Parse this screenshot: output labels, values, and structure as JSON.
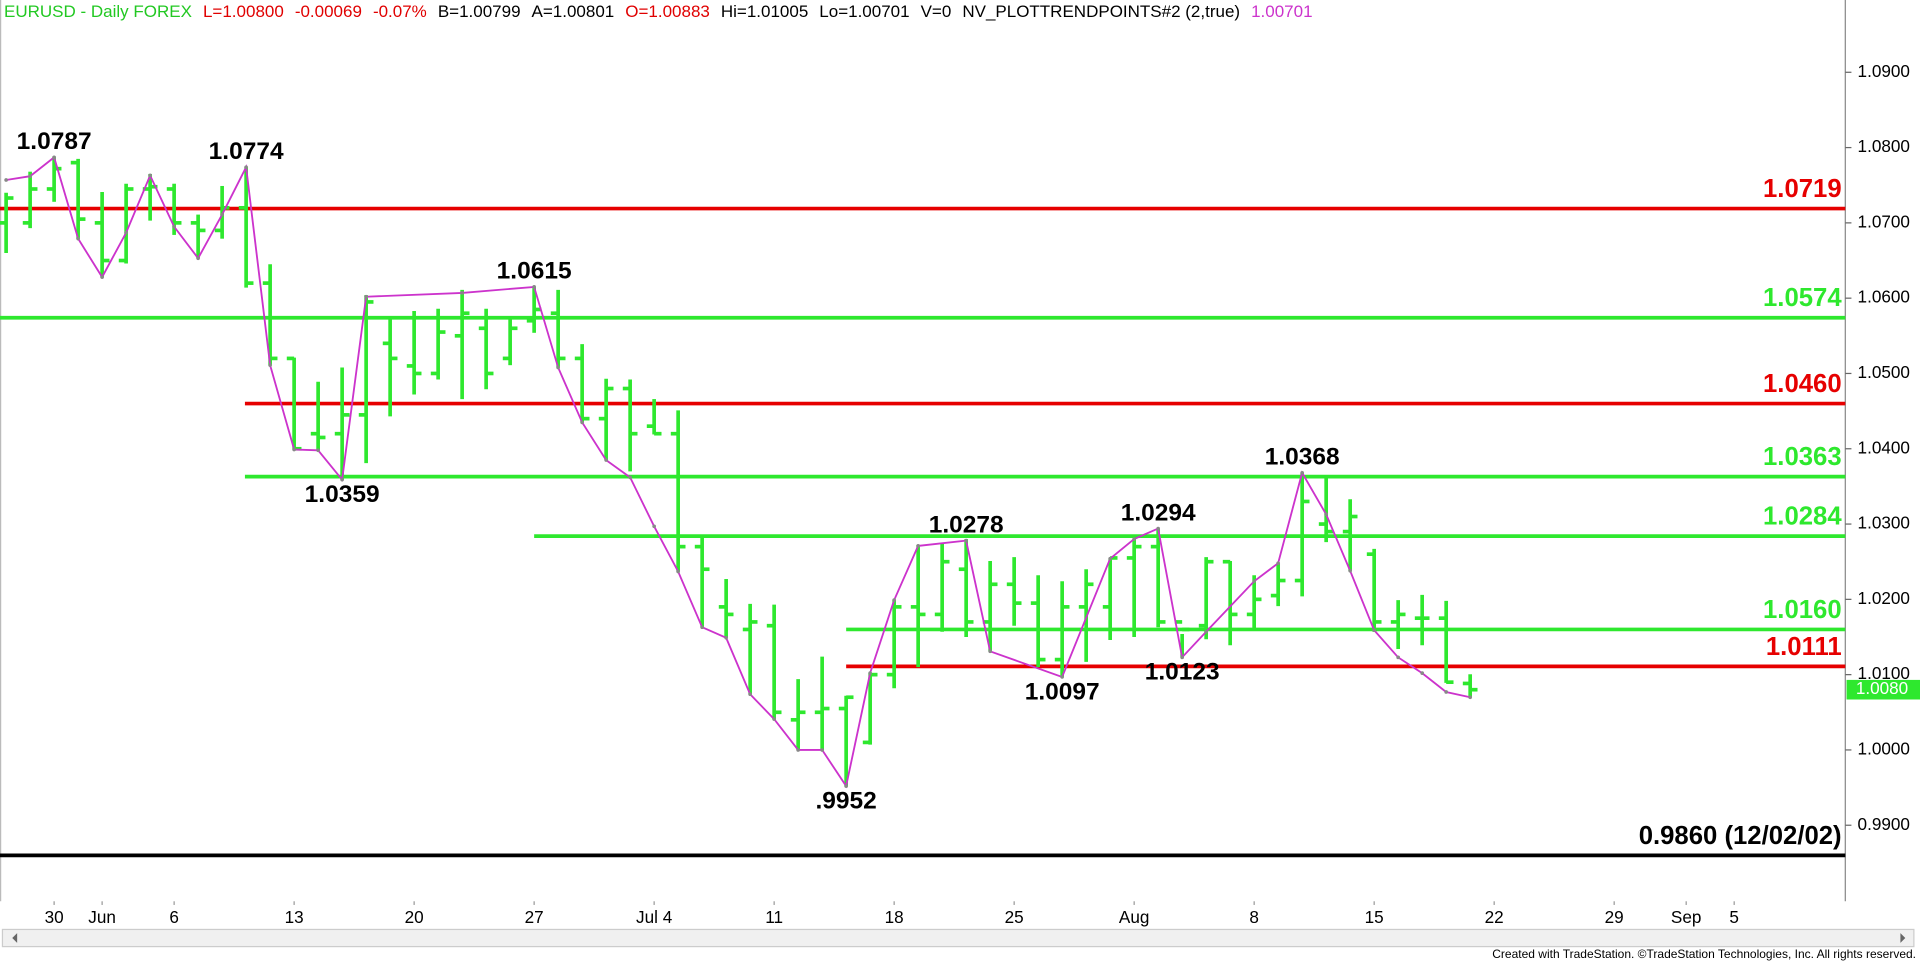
{
  "chart_data": {
    "type": "ohlc",
    "header_items": [
      {
        "text": "EURUSD - Daily  FOREX",
        "color": "#22c822"
      },
      {
        "text": "L=1.00800",
        "color": "#e00000"
      },
      {
        "text": "-0.00069",
        "color": "#e00000"
      },
      {
        "text": "-0.07%",
        "color": "#e00000"
      },
      {
        "text": "B=1.00799",
        "color": "#000000"
      },
      {
        "text": "A=1.00801",
        "color": "#000000"
      },
      {
        "text": "O=1.00883",
        "color": "#e00000"
      },
      {
        "text": "Hi=1.01005",
        "color": "#000000"
      },
      {
        "text": "Lo=1.00701",
        "color": "#000000"
      },
      {
        "text": "V=0",
        "color": "#000000"
      },
      {
        "text": "NV_PLOTTRENDPOINTS#2 (2,true)",
        "color": "#000000"
      },
      {
        "text": "1.00701",
        "color": "#cc33cc"
      }
    ],
    "xlim": [
      -0.255,
      76.63
    ],
    "ylim": [
      0.9799,
      1.0996
    ],
    "xticks": [
      {
        "value": 2,
        "label": "30"
      },
      {
        "value": 4,
        "label": "Jun"
      },
      {
        "value": 7,
        "label": "6"
      },
      {
        "value": 12,
        "label": "13"
      },
      {
        "value": 17,
        "label": "20"
      },
      {
        "value": 22,
        "label": "27"
      },
      {
        "value": 27,
        "label": "Jul 4"
      },
      {
        "value": 32,
        "label": "11"
      },
      {
        "value": 37,
        "label": "18"
      },
      {
        "value": 42,
        "label": "25"
      },
      {
        "value": 47,
        "label": "Aug"
      },
      {
        "value": 52,
        "label": "8"
      },
      {
        "value": 57,
        "label": "15"
      },
      {
        "value": 62,
        "label": "22"
      },
      {
        "value": 67,
        "label": "29"
      },
      {
        "value": 70,
        "label": "Sep"
      },
      {
        "value": 72,
        "label": "5"
      }
    ],
    "yticks": [
      {
        "value": 0.99,
        "label": "0.9900"
      },
      {
        "value": 1.0,
        "label": "1.0000"
      },
      {
        "value": 1.01,
        "label": "1.0100"
      },
      {
        "value": 1.02,
        "label": "1.0200"
      },
      {
        "value": 1.03,
        "label": "1.0300"
      },
      {
        "value": 1.04,
        "label": "1.0400"
      },
      {
        "value": 1.05,
        "label": "1.0500"
      },
      {
        "value": 1.06,
        "label": "1.0600"
      },
      {
        "value": 1.07,
        "label": "1.0700"
      },
      {
        "value": 1.08,
        "label": "1.0800"
      },
      {
        "value": 1.09,
        "label": "1.0900"
      }
    ],
    "ohlc": {
      "color": "#2ee82e",
      "open": [
        1.07,
        1.07,
        1.0745,
        1.078,
        1.07,
        1.065,
        1.0745,
        1.0745,
        1.07,
        1.069,
        1.072,
        1.062,
        1.052,
        1.042,
        1.042,
        1.0445,
        1.054,
        1.051,
        1.05,
        1.055,
        1.056,
        1.052,
        1.057,
        1.058,
        1.052,
        1.044,
        1.048,
        1.043,
        1.042,
        1.027,
        1.019,
        1.016,
        1.0165,
        1.004,
        1.005,
        1.0055,
        1.001,
        1.01,
        1.019,
        1.018,
        1.024,
        1.017,
        1.022,
        1.0195,
        1.012,
        1.019,
        1.019,
        1.0255,
        1.027,
        1.017,
        1.0165,
        1.025,
        1.018,
        1.0205,
        1.0225,
        1.03,
        1.029,
        1.026,
        1.017,
        1.0175,
        1.0175,
        1.00883
      ],
      "high": [
        1.074,
        1.0768,
        1.0788,
        1.0785,
        1.0741,
        1.0752,
        1.0765,
        1.0752,
        1.0711,
        1.0749,
        1.0774,
        1.0645,
        1.0521,
        1.0489,
        1.0508,
        1.0604,
        1.0573,
        1.0583,
        1.0586,
        1.0611,
        1.0586,
        1.0575,
        1.0615,
        1.0611,
        1.0539,
        1.0493,
        1.0492,
        1.0466,
        1.0451,
        1.0284,
        1.0227,
        1.0194,
        1.0193,
        1.0094,
        1.0124,
        1.0072,
        1.0102,
        1.0199,
        1.0272,
        1.0274,
        1.028,
        1.0251,
        1.0256,
        1.0232,
        1.0224,
        1.024,
        1.0253,
        1.028,
        1.0294,
        1.0154,
        1.0256,
        1.0251,
        1.0232,
        1.0248,
        1.0368,
        1.0365,
        1.0333,
        1.0267,
        1.0199,
        1.0206,
        1.0198,
        1.01005
      ],
      "low": [
        1.066,
        1.0693,
        1.0728,
        1.0679,
        1.0628,
        1.0646,
        1.0703,
        1.0684,
        1.0653,
        1.0679,
        1.0614,
        1.0511,
        1.0399,
        1.0398,
        1.0359,
        1.0381,
        1.0443,
        1.0472,
        1.0492,
        1.0466,
        1.0479,
        1.0511,
        1.0554,
        1.0508,
        1.0435,
        1.0385,
        1.037,
        1.0419,
        1.0237,
        1.0163,
        1.0149,
        1.0074,
        1.0041,
        1.0,
        1.0,
        0.9952,
        1.0007,
        1.0082,
        1.011,
        1.0157,
        1.015,
        1.0131,
        1.0165,
        1.011,
        1.0097,
        1.0117,
        1.0146,
        1.015,
        1.0163,
        1.0123,
        1.0147,
        1.0139,
        1.0159,
        1.0191,
        1.0204,
        1.0276,
        1.0238,
        1.0157,
        1.0134,
        1.0139,
        1.0089,
        1.00701
      ],
      "close": [
        1.0733,
        1.0745,
        1.0772,
        1.0705,
        1.065,
        1.0745,
        1.0748,
        1.07,
        1.069,
        1.072,
        1.062,
        1.052,
        1.04,
        1.0415,
        1.0445,
        1.0595,
        1.052,
        1.05,
        1.0555,
        1.058,
        1.05,
        1.056,
        1.0585,
        1.052,
        1.044,
        1.048,
        1.042,
        1.042,
        1.027,
        1.024,
        1.018,
        1.017,
        1.005,
        1.005,
        1.0055,
        1.007,
        1.01,
        1.019,
        1.018,
        1.025,
        1.017,
        1.022,
        1.0195,
        1.012,
        1.019,
        1.022,
        1.0255,
        1.027,
        1.017,
        1.016,
        1.025,
        1.018,
        1.02,
        1.0225,
        1.033,
        1.029,
        1.031,
        1.017,
        1.018,
        1.0175,
        1.009,
        1.008
      ]
    },
    "trend": {
      "color": "#cc33cc",
      "x": [
        0,
        1,
        2,
        3,
        4,
        5,
        6,
        7,
        8,
        9,
        10,
        11,
        12,
        13,
        14,
        15,
        19,
        22,
        23,
        24,
        25,
        26,
        27,
        28,
        29,
        30,
        31,
        32,
        33,
        34,
        35,
        36,
        37,
        38,
        40,
        41,
        44,
        46,
        47,
        48,
        49,
        50,
        52,
        53,
        54,
        55,
        56,
        57,
        58,
        59,
        60,
        61
      ],
      "values": [
        1.0757,
        1.0762,
        1.0787,
        1.0679,
        1.0628,
        1.0687,
        1.0763,
        1.0695,
        1.0653,
        1.0711,
        1.0774,
        1.0511,
        1.0399,
        1.0398,
        1.0359,
        1.0602,
        1.0607,
        1.0615,
        1.0508,
        1.0435,
        1.0385,
        1.0362,
        1.0297,
        1.0237,
        1.0163,
        1.0149,
        1.0074,
        1.0041,
        1.0,
        1.0,
        0.9952,
        1.0102,
        1.0199,
        1.0271,
        1.0278,
        1.0131,
        1.0097,
        1.0254,
        1.028,
        1.0294,
        1.0123,
        1.0157,
        1.0224,
        1.0248,
        1.0368,
        1.0313,
        1.0238,
        1.0159,
        1.0123,
        1.0102,
        1.0077,
        1.007
      ]
    },
    "trend_labels": [
      {
        "x": 2,
        "value": 1.0787,
        "label": "1.0787",
        "position": "above"
      },
      {
        "x": 10,
        "value": 1.0774,
        "label": "1.0774",
        "position": "above"
      },
      {
        "x": 22,
        "value": 1.0615,
        "label": "1.0615",
        "position": "above"
      },
      {
        "x": 14,
        "value": 1.0359,
        "label": "1.0359",
        "position": "below"
      },
      {
        "x": 35,
        "value": 0.9952,
        "label": ".9952",
        "position": "below"
      },
      {
        "x": 40,
        "value": 1.0278,
        "label": "1.0278",
        "position": "above"
      },
      {
        "x": 44,
        "value": 1.0097,
        "label": "1.0097",
        "position": "below"
      },
      {
        "x": 48,
        "value": 1.0294,
        "label": "1.0294",
        "position": "above"
      },
      {
        "x": 49,
        "value": 1.0123,
        "label": "1.0123",
        "position": "below"
      },
      {
        "x": 54,
        "value": 1.0368,
        "label": "1.0368",
        "position": "above"
      }
    ],
    "levels": [
      {
        "value": 1.0719,
        "label": "1.0719",
        "color": "#e60000",
        "from": -0.255
      },
      {
        "value": 1.0574,
        "label": "1.0574",
        "color": "#2ee82e",
        "from": -0.255
      },
      {
        "value": 1.046,
        "label": "1.0460",
        "color": "#e60000",
        "from": 9.95
      },
      {
        "value": 1.0363,
        "label": "1.0363",
        "color": "#2ee82e",
        "from": 9.95
      },
      {
        "value": 1.0284,
        "label": "1.0284",
        "color": "#2ee82e",
        "from": 22
      },
      {
        "value": 1.016,
        "label": "1.0160",
        "color": "#2ee82e",
        "from": 35
      },
      {
        "value": 1.0111,
        "label": "1.0111",
        "color": "#e60000",
        "from": 35
      },
      {
        "value": 0.986,
        "label": "0.9860 (12/02/02)",
        "color": "#000000",
        "from": -0.255
      }
    ],
    "last_price": {
      "value": 1.008,
      "label": "1.0080",
      "color": "#2ee82e"
    },
    "footer": "Created with TradeStation. ©TradeStation Technologies, Inc. All rights reserved."
  }
}
